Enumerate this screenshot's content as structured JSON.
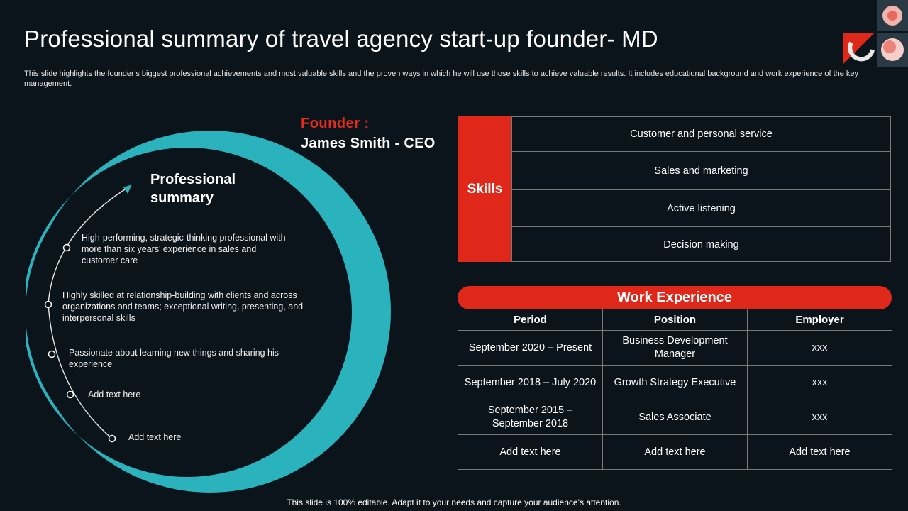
{
  "title": "Professional summary of travel agency start-up founder- MD",
  "subtitle": "This slide highlights the founder’s biggest professional achievements and most valuable skills and the proven ways in which he will use those skills to achieve valuable results. It includes educational background and work experience of the key management.",
  "founder": {
    "label": "Founder :",
    "name": "James Smith - CEO"
  },
  "summary": {
    "heading_line1": "Professional",
    "heading_line2": "summary",
    "items": [
      "High-performing,  strategic-thinking professional with more than six years' experience in sales and customer care",
      "Highly skilled at relationship-building  with clients and across organizations and teams; exceptional writing, presenting, and interpersonal skills",
      "Passionate about learning new things and sharing his experience",
      "Add text here",
      "Add text here"
    ]
  },
  "skills": {
    "label": "Skills",
    "items": [
      "Customer and personal service",
      "Sales and marketing",
      "Active listening",
      "Decision making"
    ]
  },
  "work_experience": {
    "heading": "Work Experience",
    "columns": [
      "Period",
      "Position",
      "Employer"
    ],
    "rows": [
      [
        "September 2020 – Present",
        "Business Development Manager",
        "xxx"
      ],
      [
        "September 2018 – July 2020",
        "Growth Strategy Executive",
        "xxx"
      ],
      [
        "September 2015 – September 2018",
        "Sales Associate",
        "xxx"
      ],
      [
        "Add text here",
        "Add text here",
        "Add text here"
      ]
    ]
  },
  "footer": "This slide is 100% editable. Adapt it to your needs and capture your audience’s attention.",
  "colors": {
    "background": "#0b141b",
    "accent_red": "#e0281a",
    "accent_teal": "#2bb3bd",
    "border": "#7a7a7a"
  }
}
